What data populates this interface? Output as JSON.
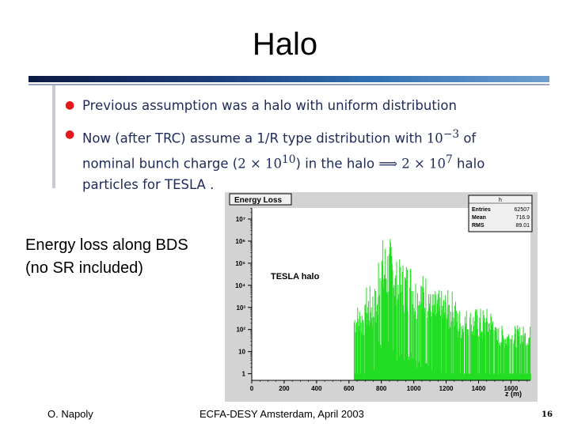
{
  "title": "Halo",
  "bullets": [
    {
      "text": "Previous assumption was a halo with uniform distribution"
    },
    {
      "line1_a": "Now (after TRC) assume a 1/R type distribution with ",
      "line1_math": "10",
      "line1_exp": "−3",
      "line1_b": " of",
      "line2_a": "nominal bunch charge (",
      "line2_math": "2 × 10",
      "line2_exp": "10",
      "line2_b": ") in the halo ",
      "line2_arrow": "⟹",
      "line2_math2": " 2 × 10",
      "line2_exp2": "7",
      "line2_c": " halo",
      "line3": "particles for TESLA ."
    }
  ],
  "caption": {
    "line1": "Energy loss along BDS",
    "line2": "(no SR included)"
  },
  "chart_data": {
    "type": "bar",
    "title": "Energy Loss",
    "annotation": "TESLA halo",
    "stats": {
      "name": "h",
      "entries_label": "Entries",
      "entries": "62507",
      "mean_label": "Mean",
      "mean": "716.9",
      "rms_label": "RMS",
      "rms": "89.01"
    },
    "xlabel": "z (m)",
    "xlim": [
      0,
      1720
    ],
    "xticks": [
      "0",
      "200",
      "400",
      "600",
      "800",
      "1000",
      "1200",
      "1400",
      "1600"
    ],
    "ylog": true,
    "ylim_exponents": [
      -0.3,
      7.5
    ],
    "yticks": [
      "1",
      "10",
      "10²",
      "10³",
      "10⁴",
      "10⁵",
      "10⁶",
      "10⁷"
    ],
    "segments": [
      {
        "from": 630,
        "to": 700,
        "max_exp": 3.2
      },
      {
        "from": 700,
        "to": 780,
        "max_exp": 4.0
      },
      {
        "from": 780,
        "to": 880,
        "max_exp": 6.2
      },
      {
        "from": 880,
        "to": 1000,
        "max_exp": 5.2
      },
      {
        "from": 1000,
        "to": 1100,
        "max_exp": 4.6
      },
      {
        "from": 1100,
        "to": 1260,
        "max_exp": 3.8
      },
      {
        "from": 1260,
        "to": 1500,
        "max_exp": 3.0
      },
      {
        "from": 1500,
        "to": 1720,
        "max_exp": 2.2
      }
    ],
    "bar_color": "#22dd22",
    "frame_color": "#cfcfcf"
  },
  "footer": {
    "author": "O. Napoly",
    "event": "ECFA-DESY Amsterdam, April 2003",
    "page": "16"
  }
}
